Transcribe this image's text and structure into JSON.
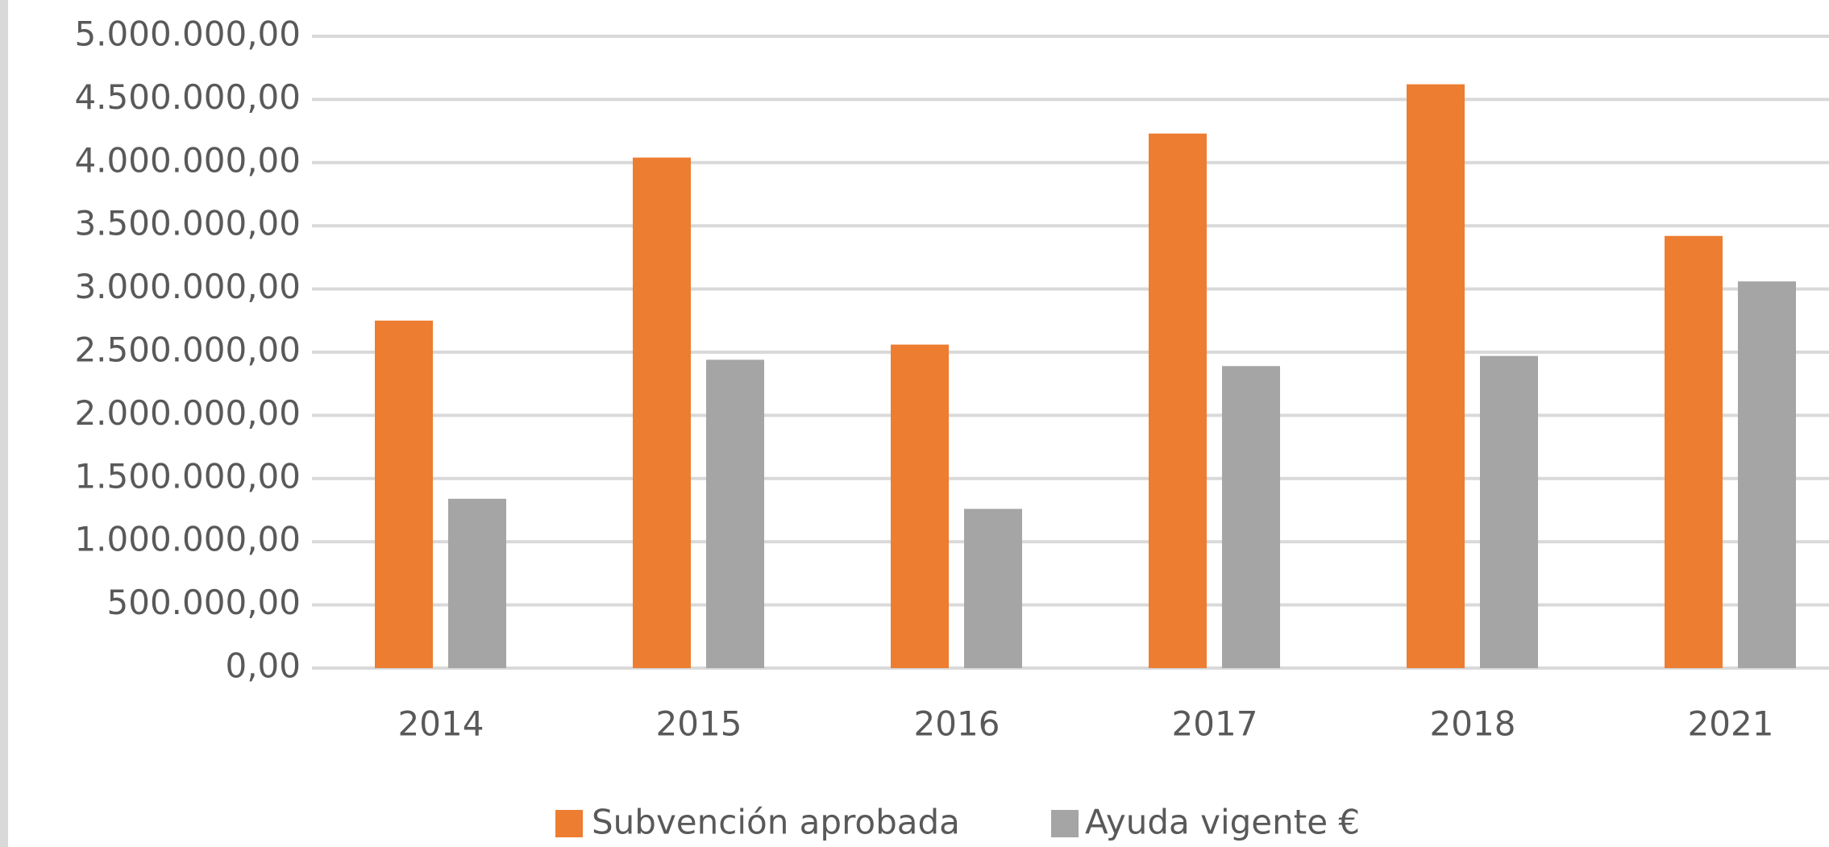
{
  "chart_data": {
    "type": "bar",
    "categories": [
      "2014",
      "2015",
      "2016",
      "2017",
      "2018",
      "2021"
    ],
    "series": [
      {
        "name": "Subvención aprobada",
        "color": "#ed7d31",
        "values": [
          2750000,
          4040000,
          2560000,
          4230000,
          4620000,
          3420000
        ]
      },
      {
        "name": "Ayuda vigente €",
        "color": "#a5a5a5",
        "values": [
          1340000,
          2440000,
          1260000,
          2390000,
          2470000,
          3060000
        ]
      }
    ],
    "ylim": [
      0,
      5000000
    ],
    "yticks": [
      {
        "value": 0,
        "label": "0,00"
      },
      {
        "value": 500000,
        "label": "500.000,00"
      },
      {
        "value": 1000000,
        "label": "1.000.000,00"
      },
      {
        "value": 1500000,
        "label": "1.500.000,00"
      },
      {
        "value": 2000000,
        "label": "2.000.000,00"
      },
      {
        "value": 2500000,
        "label": "2.500.000,00"
      },
      {
        "value": 3000000,
        "label": "3.000.000,00"
      },
      {
        "value": 3500000,
        "label": "3.500.000,00"
      },
      {
        "value": 4000000,
        "label": "4.000.000,00"
      },
      {
        "value": 4500000,
        "label": "4.500.000,00"
      },
      {
        "value": 5000000,
        "label": "5.000.000,00"
      }
    ],
    "grid": true,
    "legend": "bottom"
  }
}
